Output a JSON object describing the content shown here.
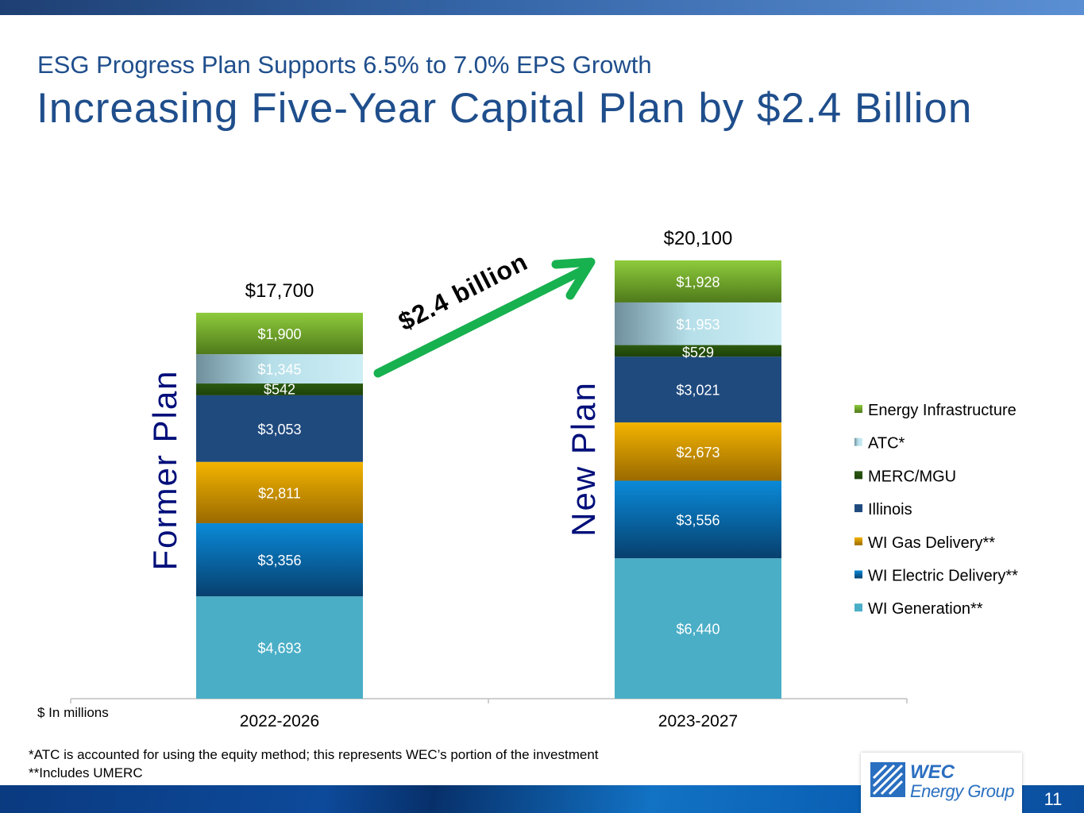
{
  "slide": {
    "subtitle": "ESG Progress Plan Supports 6.5% to 7.0% EPS Growth",
    "title": "Increasing Five-Year Capital Plan by $2.4 Billion",
    "units_note": "$ In millions",
    "footnote_1": "*ATC is accounted for using the equity method; this represents WEC’s portion of the investment",
    "footnote_2": "**Includes UMERC",
    "page_number": "11",
    "logo": {
      "line1": "WEC",
      "line2": "Energy Group"
    }
  },
  "chart_data": {
    "type": "bar",
    "stacked": true,
    "categories": [
      "2022-2026",
      "2023-2027"
    ],
    "category_side_labels": [
      "Former Plan",
      "New Plan"
    ],
    "totals": [
      "$17,700",
      "$20,100"
    ],
    "total_values": [
      17700,
      20100
    ],
    "annotation": "$2.4 billion",
    "ylim": [
      0,
      21000
    ],
    "ylabel": "$ In millions",
    "grid": false,
    "legend_position": "right",
    "series": [
      {
        "name": "WI Generation**",
        "values": [
          4693,
          6440
        ],
        "labels": [
          "$4,693",
          "$6,440"
        ],
        "color": "#4aaec6",
        "color_dark": "#4aaec6",
        "text_color": "#ffffff"
      },
      {
        "name": "WI Electric Delivery**",
        "values": [
          3356,
          3556
        ],
        "labels": [
          "$3,356",
          "$3,556"
        ],
        "color": "#0a8ad8",
        "color_dark": "#07406e",
        "text_color": "#ffffff"
      },
      {
        "name": "WI Gas Delivery**",
        "values": [
          2811,
          2673
        ],
        "labels": [
          "$2,811",
          "$2,673"
        ],
        "color": "#f3b400",
        "color_dark": "#9a6a00",
        "text_color": "#ffffff"
      },
      {
        "name": "Illinois",
        "values": [
          3053,
          3021
        ],
        "labels": [
          "$3,053",
          "$3,021"
        ],
        "color": "#1f4a7e",
        "color_dark": "#1f4a7e",
        "text_color": "#ffffff"
      },
      {
        "name": "MERC/MGU",
        "values": [
          542,
          529
        ],
        "labels": [
          "$542",
          "$529"
        ],
        "color": "#2c5b10",
        "color_dark": "#1d420a",
        "text_color": "#ffffff"
      },
      {
        "name": "ATC*",
        "values": [
          1345,
          1953
        ],
        "labels": [
          "$1,345",
          "$1,953"
        ],
        "color": "#b6dfe9",
        "color_dark": "#6f8f9c",
        "text_color": "#ffffff"
      },
      {
        "name": "Energy Infrastructure",
        "values": [
          1900,
          1928
        ],
        "labels": [
          "$1,900",
          "$1,928"
        ],
        "color": "#8ecb3c",
        "color_dark": "#4f7a1a",
        "text_color": "#ffffff"
      }
    ],
    "colors": {
      "side_label": "#000f7a",
      "arrow": "#17b14f",
      "axis": "#bfbfbf"
    }
  }
}
